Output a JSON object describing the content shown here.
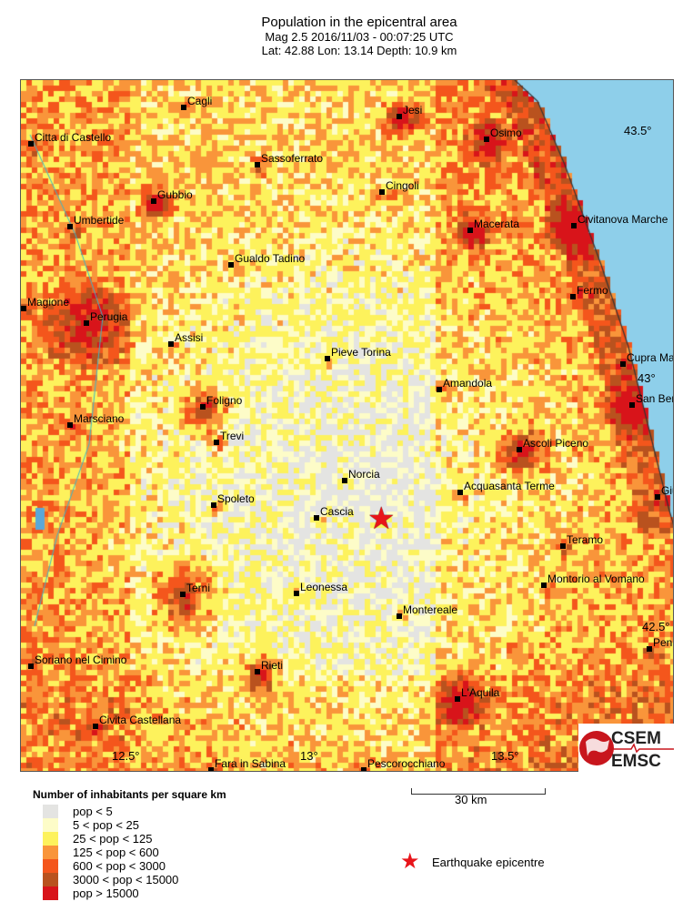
{
  "header": {
    "title": "Population in the epicentral area",
    "line2": "Mag 2.5  2016/11/03 - 00:07:25 UTC",
    "line3": "Lat: 42.88    Lon:  13.14     Depth:  10.9 km"
  },
  "map": {
    "towns": [
      "Cagli",
      "Jesi",
      "Osimo",
      "Citta di Castello",
      "Sassoferrato",
      "Cingoli",
      "Gubbio",
      "Umbertide",
      "Macerata",
      "Civitanova Marche",
      "Gualdo Tadino",
      "Fermo",
      "Magione",
      "Perugia",
      "Assisi",
      "Pieve Torina",
      "Cupra Ma",
      "Amandola",
      "San Ber",
      "Foligno",
      "Marsciano",
      "Trevi",
      "Ascoli Piceno",
      "Norcia",
      "Acquasanta Terme",
      "Giu",
      "Spoleto",
      "Cascia",
      "Teramo",
      "Montorio al Vomano",
      "Terni",
      "Leonessa",
      "Montereale",
      "Penn",
      "Soriano nel Cimino",
      "Rieti",
      "L'Aquila",
      "Civita Castellana",
      "Fara in Sabina",
      "Pescorocchiano"
    ],
    "graticule": {
      "lat": [
        "43.5°",
        "43°",
        "42.5°"
      ],
      "lon": [
        "12.5°",
        "13°",
        "13.5°"
      ]
    },
    "sea_color": "#8ecfea",
    "epicentre_icon": "red-star-icon"
  },
  "logo": {
    "line1": "CSEM",
    "line2": "EMSC"
  },
  "legend": {
    "title": "Number of inhabitants per square km",
    "items": [
      {
        "label": "pop < 5",
        "color": "#e4e4e2"
      },
      {
        "label": "5 < pop < 25",
        "color": "#fdfcc8"
      },
      {
        "label": "25 < pop < 125",
        "color": "#fdf25c"
      },
      {
        "label": "125 < pop < 600",
        "color": "#f9953a"
      },
      {
        "label": "600 < pop < 3000",
        "color": "#f4561c"
      },
      {
        "label": "3000 < pop < 15000",
        "color": "#b9521e"
      },
      {
        "label": "pop > 15000",
        "color": "#d8141a"
      }
    ],
    "scale_label": "30 km",
    "epicentre_label": "Earthquake epicentre"
  }
}
